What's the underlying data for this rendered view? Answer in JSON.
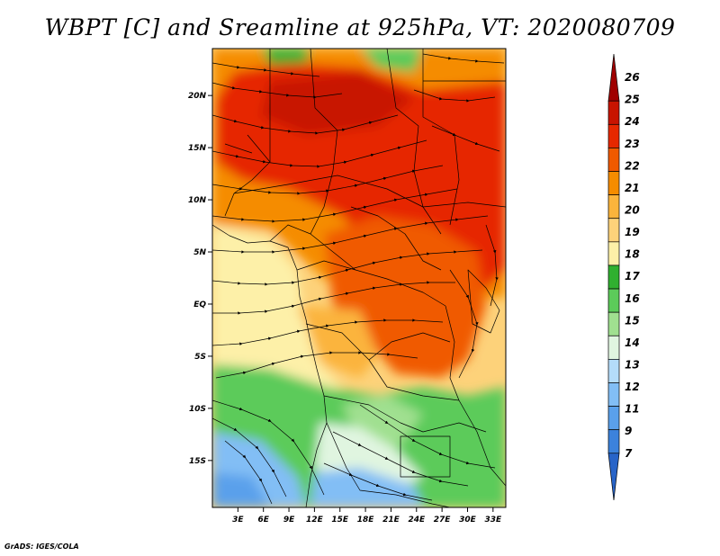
{
  "title": "WBPT [C] and Sreamline at 925hPa, VT: 2020080709",
  "footer": "GrADS: IGES/COLA",
  "map": {
    "lat_labels": [
      "20N",
      "15N",
      "10N",
      "5N",
      "EQ",
      "5S",
      "10S",
      "15S"
    ],
    "lat_values": [
      20,
      15,
      10,
      5,
      0,
      -5,
      -10,
      -15
    ],
    "lon_labels": [
      "3E",
      "6E",
      "9E",
      "12E",
      "15E",
      "18E",
      "21E",
      "24E",
      "27E",
      "30E",
      "33E"
    ],
    "lon_values": [
      3,
      6,
      9,
      12,
      15,
      18,
      21,
      24,
      27,
      30,
      33
    ],
    "lon_range": [
      0,
      34.5
    ],
    "lat_range": [
      -19.5,
      24.5
    ]
  },
  "colorbar": {
    "labels": [
      "26",
      "25",
      "24",
      "23",
      "22",
      "21",
      "20",
      "19",
      "18",
      "17",
      "16",
      "15",
      "14",
      "13",
      "12",
      "11",
      "9",
      "7"
    ],
    "colors": [
      "#a00000",
      "#c81400",
      "#e62800",
      "#f05a00",
      "#f58c00",
      "#fbb43c",
      "#fdd27a",
      "#fdf0a8",
      "#30b030",
      "#5ccb5a",
      "#a0e090",
      "#e0f5e0",
      "#b4dcfa",
      "#82bef5",
      "#5aa0eb",
      "#3c82dc",
      "#2864c8"
    ]
  },
  "regions": [
    {
      "name": "northern-hot-zone",
      "color": "#e62800"
    },
    {
      "name": "central-hot-zone",
      "color": "#f05a00"
    },
    {
      "name": "sahel-orange-band",
      "color": "#f58c00"
    },
    {
      "name": "gulf-of-guinea-pale-zone",
      "color": "#fdd27a"
    },
    {
      "name": "southern-green-zone",
      "color": "#5ccb5a"
    },
    {
      "name": "southwest-blue-zone",
      "color": "#82bef5"
    }
  ]
}
